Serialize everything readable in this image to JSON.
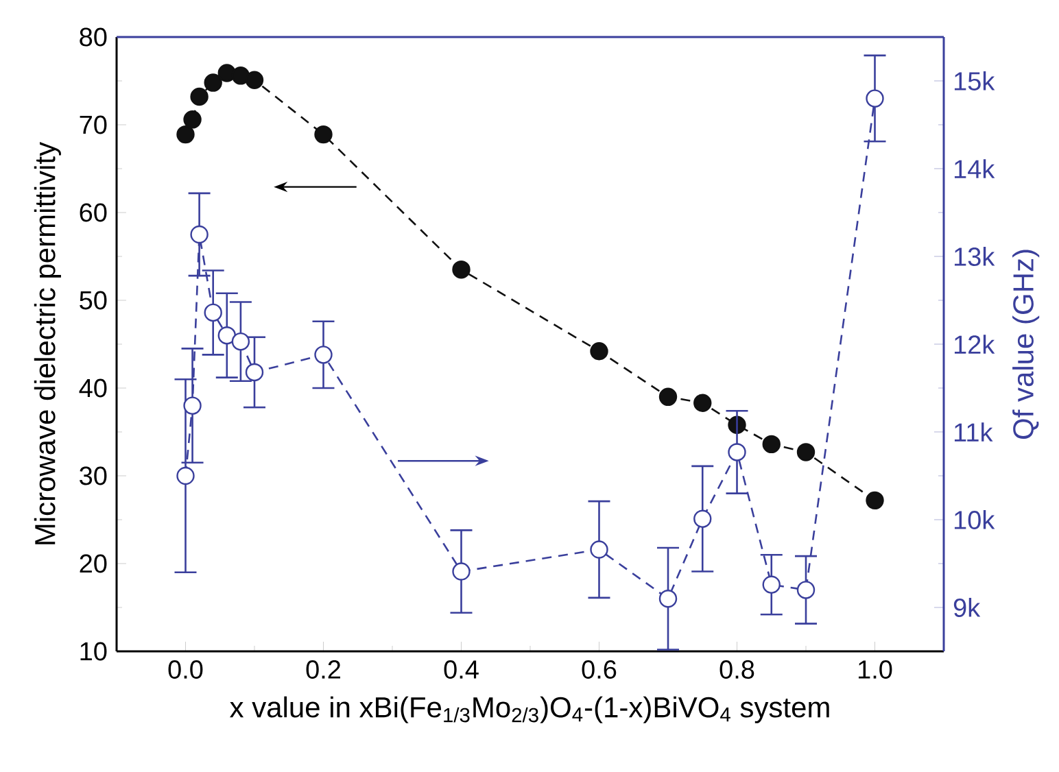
{
  "chart_data": {
    "type": "line",
    "xlabel": "x value in xBi(Fe$_{1/3}$Mo$_{2/3}$)O$_{4}$-(1-x)BiVO$_{4}$ system",
    "ylabel": "Microwave dielectric permittivity",
    "y2label": "Qf value (GHz)",
    "xlim": [
      -0.1,
      1.1
    ],
    "xticks": [
      {
        "value": 0,
        "label": "0.0"
      },
      0.2,
      0.4,
      0.6,
      0.8,
      {
        "value": 1,
        "label": "1.0"
      }
    ],
    "ylim": [
      10,
      80
    ],
    "yticks": [
      10,
      20,
      30,
      40,
      50,
      60,
      70,
      80
    ],
    "y2lim": [
      8500,
      15500
    ],
    "y2ticks": [
      {
        "value": 9000,
        "label": "9k"
      },
      {
        "value": 10000,
        "label": "10k"
      },
      {
        "value": 11000,
        "label": "11k"
      },
      {
        "value": 12000,
        "label": "12k"
      },
      {
        "value": 13000,
        "label": "13k"
      },
      {
        "value": 14000,
        "label": "14k"
      },
      {
        "value": 15000,
        "label": "15k"
      }
    ],
    "marker": "circle",
    "line_style": "dashed",
    "grid": false,
    "x": [
      0,
      0.01,
      0.02,
      0.04,
      0.06,
      0.08,
      0.1,
      0.2,
      0.4,
      0.6,
      0.7,
      0.75,
      0.8,
      0.85,
      0.9,
      1.0
    ],
    "series": [
      {
        "color": "#111111",
        "values": [
          68.9,
          70.6,
          73.2,
          74.8,
          75.9,
          75.6,
          75.1,
          68.9,
          53.5,
          44.2,
          39.0,
          38.3,
          35.8,
          33.6,
          32.7,
          27.2
        ]
      },
      {
        "color": "#3a3f9c",
        "axis": "y2",
        "values": [
          10500,
          11300,
          13250,
          12360,
          12100,
          12030,
          11680,
          11880,
          9410,
          9660,
          9100,
          10010,
          10770,
          9260,
          9200,
          14800
        ],
        "errors": [
          1100,
          650,
          470,
          480,
          480,
          450,
          400,
          380,
          470,
          550,
          580,
          600,
          470,
          340,
          385,
          490
        ]
      }
    ]
  }
}
